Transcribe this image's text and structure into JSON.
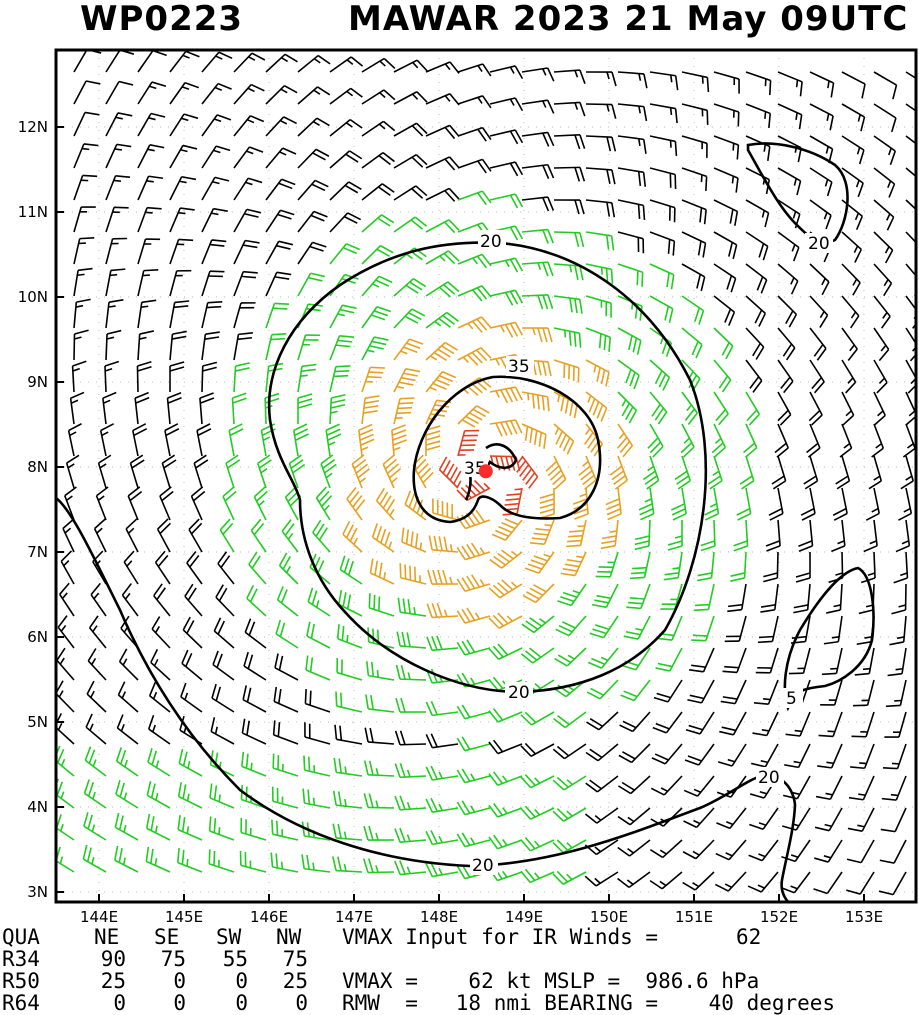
{
  "title": {
    "storm_id": "WP0223",
    "storm_info": "MAWAR 2023 21 May 09UTC"
  },
  "map": {
    "lon_labels": [
      "144E",
      "145E",
      "146E",
      "147E",
      "148E",
      "149E",
      "150E",
      "151E",
      "152E",
      "153E"
    ],
    "lat_labels": [
      "12N",
      "11N",
      "10N",
      "9N",
      "8N",
      "7N",
      "6N",
      "5N",
      "4N",
      "3N"
    ],
    "contour_labels": [
      "20",
      "20",
      "35",
      "35",
      "20",
      "5",
      "20",
      "20"
    ],
    "colors": {
      "barb_low": "#000000",
      "barb_gale": "#22cc22",
      "barb_storm": "#e8a020",
      "barb_core": "#e04020",
      "center": "#ff2a2a"
    },
    "center": {
      "lon": 148.55,
      "lat": 7.95
    }
  },
  "info": {
    "header": {
      "label": "QUA",
      "cols": [
        "NE",
        "SE",
        "SW",
        "NW"
      ],
      "text": "VMAX Input for IR Winds =",
      "value": "62"
    },
    "rows": [
      {
        "label": "R34",
        "values": [
          "90",
          "75",
          "55",
          "75"
        ],
        "text": ""
      },
      {
        "label": "R50",
        "values": [
          "25",
          "0",
          "0",
          "25"
        ],
        "text": "VMAX =    62 kt MSLP =  986.6 hPa"
      },
      {
        "label": "R64",
        "values": [
          "0",
          "0",
          "0",
          "0"
        ],
        "text": "RMW  =   18 nmi BEARING =    40 degrees"
      }
    ]
  }
}
